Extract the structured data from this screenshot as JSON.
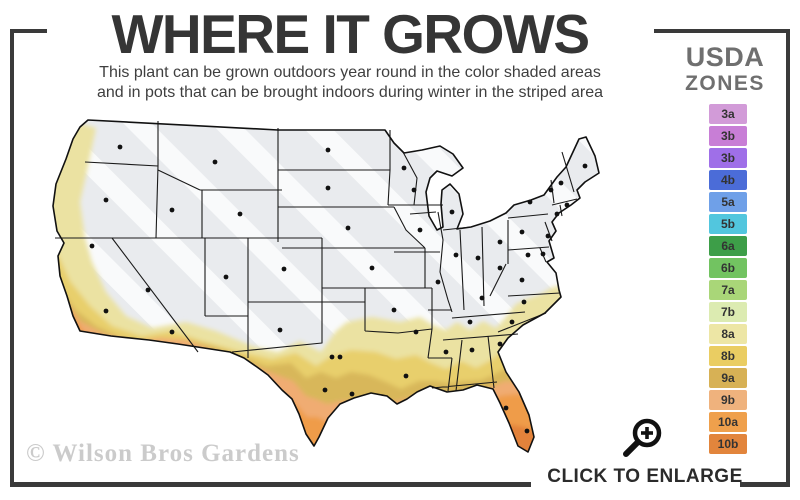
{
  "header": {
    "title": "WHERE IT GROWS",
    "subtitle_line1": "This plant can be grown outdoors year round in the color shaded areas",
    "subtitle_line2": "and in pots that can be brought indoors during winter in the striped area"
  },
  "legend": {
    "title_line1": "USDA",
    "title_line2": "ZONES",
    "zones": [
      {
        "label": "3a",
        "color": "#D29BD8"
      },
      {
        "label": "3b",
        "color": "#C87ED6"
      },
      {
        "label": "3b",
        "color": "#9F6FE8"
      },
      {
        "label": "4b",
        "color": "#4B6CD8"
      },
      {
        "label": "5a",
        "color": "#6FA0E8"
      },
      {
        "label": "5b",
        "color": "#52C6DE"
      },
      {
        "label": "6a",
        "color": "#3D9E48"
      },
      {
        "label": "6b",
        "color": "#72C361"
      },
      {
        "label": "7a",
        "color": "#A9D678"
      },
      {
        "label": "7b",
        "color": "#DCEBB1"
      },
      {
        "label": "8a",
        "color": "#EDE6A5"
      },
      {
        "label": "8b",
        "color": "#EACD62"
      },
      {
        "label": "9a",
        "color": "#D7B155"
      },
      {
        "label": "9b",
        "color": "#EFB27D"
      },
      {
        "label": "10a",
        "color": "#EFA04C"
      },
      {
        "label": "10b",
        "color": "#E2853C"
      }
    ]
  },
  "map": {
    "stripe_base": "#E9EBEE",
    "stripe_highlight": "#FFFFFF",
    "bands": {
      "zone_8a": "#EBE2A2",
      "zone_8b": "#E8CF6C",
      "zone_9a": "#D8B75A",
      "zone_9b": "#F0AC72",
      "zone_10a": "#EF9C4A",
      "zone_10b": "#E2823A"
    }
  },
  "footer": {
    "watermark": "© Wilson Bros Gardens",
    "enlarge_label": "CLICK TO ENLARGE"
  }
}
